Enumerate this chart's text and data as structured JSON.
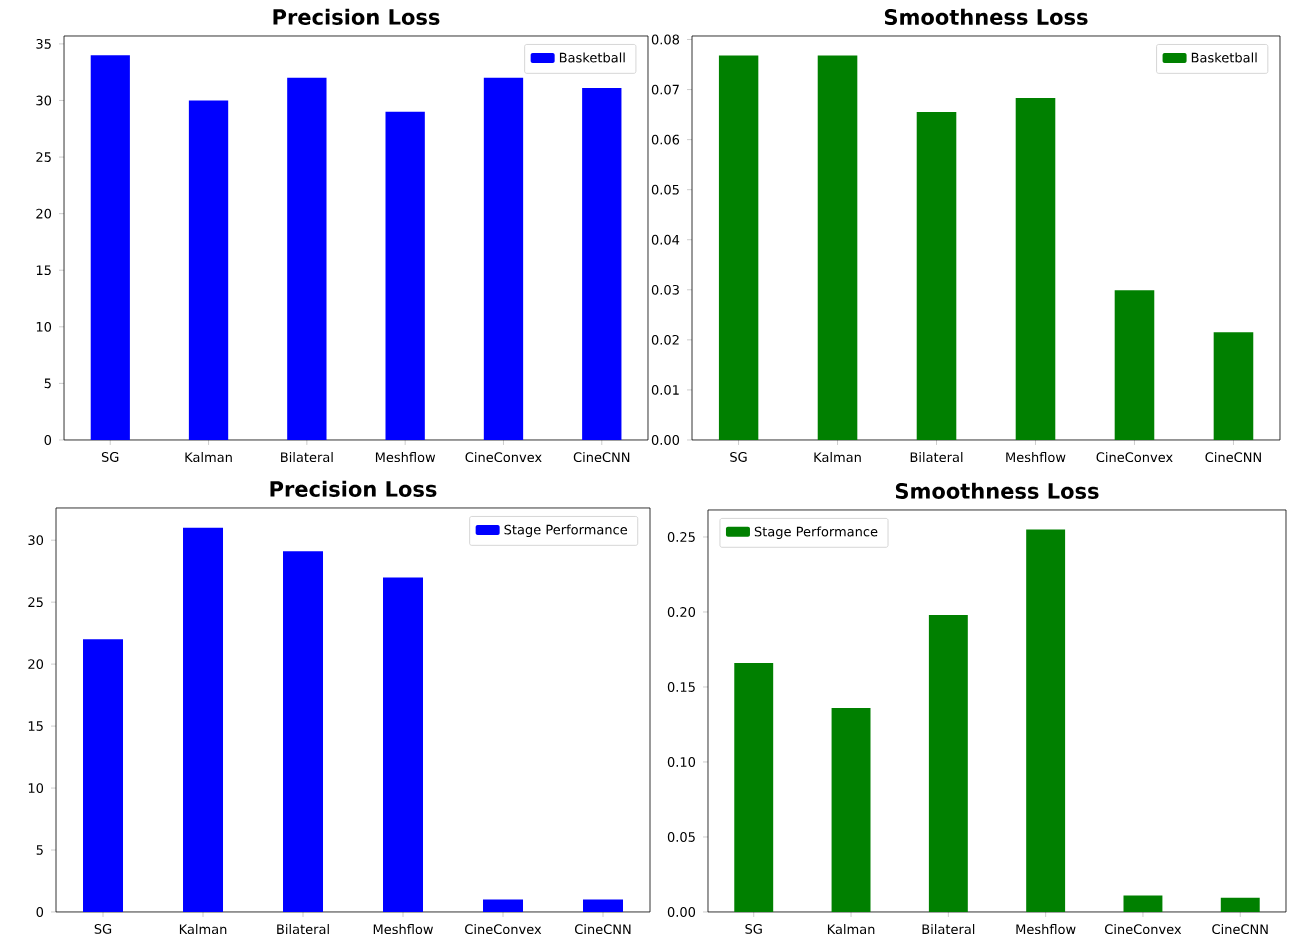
{
  "chart_data": [
    {
      "type": "bar",
      "title": "Precision Loss",
      "categories": [
        "SG",
        "Kalman",
        "Bilateral",
        "Meshflow",
        "CineConvex",
        "CineCNN"
      ],
      "series": [
        {
          "name": "Basketball",
          "color": "#0000ff",
          "values": [
            34,
            30,
            32,
            29,
            32,
            31.1
          ]
        }
      ],
      "ylim": [
        0,
        35.7
      ],
      "yticks": [
        0,
        5,
        10,
        15,
        20,
        25,
        30,
        35
      ],
      "legend": "top right"
    },
    {
      "type": "bar",
      "title": "Smoothness Loss",
      "categories": [
        "SG",
        "Kalman",
        "Bilateral",
        "Meshflow",
        "CineConvex",
        "CineCNN"
      ],
      "series": [
        {
          "name": "Basketball",
          "color": "#008000",
          "values": [
            0.0768,
            0.0768,
            0.0655,
            0.0683,
            0.0299,
            0.0215
          ]
        }
      ],
      "ylim": [
        0,
        0.0807
      ],
      "yticks": [
        {
          "value": 0,
          "label": "0.00"
        },
        {
          "value": 0.01,
          "label": "0.01"
        },
        {
          "value": 0.02,
          "label": "0.02"
        },
        {
          "value": 0.03,
          "label": "0.03"
        },
        {
          "value": 0.04,
          "label": "0.04"
        },
        {
          "value": 0.05,
          "label": "0.05"
        },
        {
          "value": 0.06,
          "label": "0.06"
        },
        {
          "value": 0.07,
          "label": "0.07"
        },
        {
          "value": 0.08,
          "label": "0.08"
        }
      ],
      "legend": "top right"
    },
    {
      "type": "bar",
      "title": "Precision Loss",
      "categories": [
        "SG",
        "Kalman",
        "Bilateral",
        "Meshflow",
        "CineConvex",
        "CineCNN"
      ],
      "series": [
        {
          "name": "Stage Performance",
          "color": "#0000ff",
          "values": [
            22,
            31,
            29.1,
            27,
            1,
            1
          ]
        }
      ],
      "ylim": [
        0,
        32.6
      ],
      "yticks": [
        0,
        5,
        10,
        15,
        20,
        25,
        30
      ],
      "legend": "top right"
    },
    {
      "type": "bar",
      "title": "Smoothness Loss",
      "categories": [
        "SG",
        "Kalman",
        "Bilateral",
        "Meshflow",
        "CineConvex",
        "CineCNN"
      ],
      "series": [
        {
          "name": "Stage Performance",
          "color": "#008000",
          "values": [
            0.166,
            0.136,
            0.198,
            0.255,
            0.011,
            0.0095
          ]
        }
      ],
      "ylim": [
        0,
        0.268
      ],
      "yticks": [
        {
          "value": 0,
          "label": "0.00"
        },
        {
          "value": 0.05,
          "label": "0.05"
        },
        {
          "value": 0.1,
          "label": "0.10"
        },
        {
          "value": 0.15,
          "label": "0.15"
        },
        {
          "value": 0.2,
          "label": "0.20"
        },
        {
          "value": 0.25,
          "label": "0.25"
        }
      ],
      "legend": "top left"
    }
  ]
}
